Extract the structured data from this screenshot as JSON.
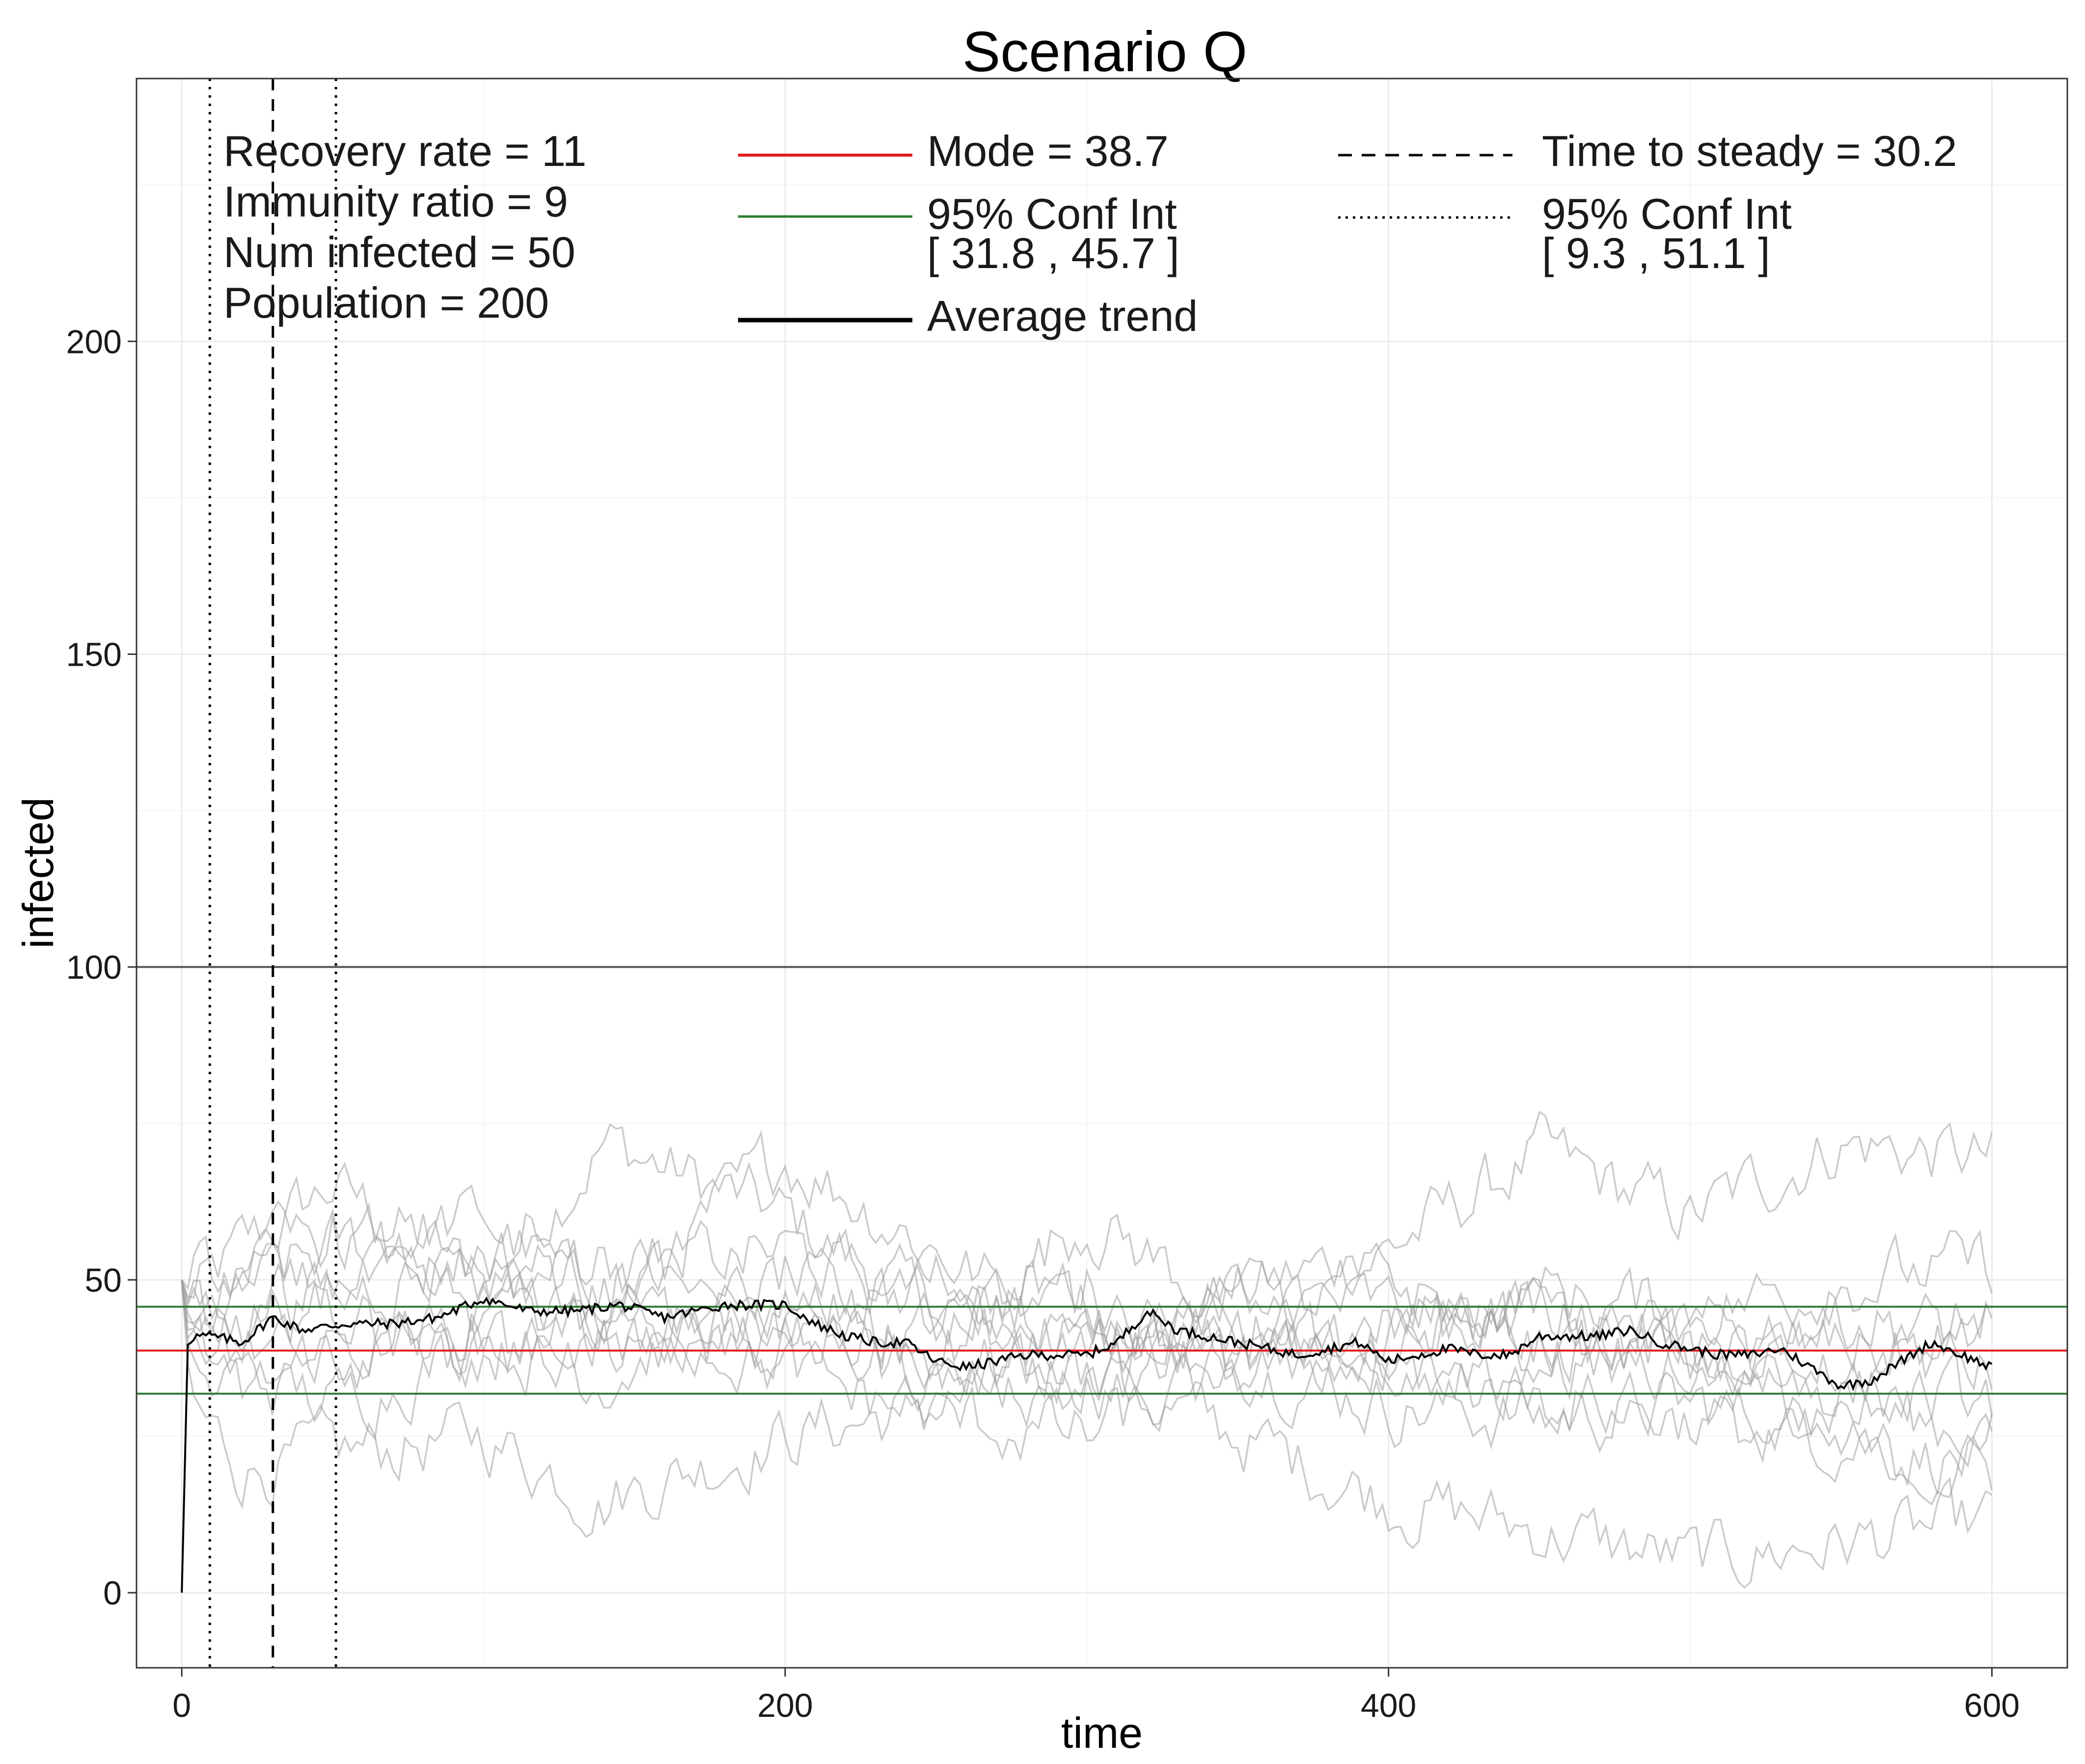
{
  "chart_data": {
    "type": "line",
    "title": "Scenario Q",
    "xlabel": "time",
    "ylabel": "infected",
    "xlim": [
      -15,
      625
    ],
    "ylim": [
      -12,
      242
    ],
    "x_ticks": [
      0,
      200,
      400,
      600
    ],
    "x_tick_labels": [
      "0",
      "200",
      "400",
      "600"
    ],
    "y_ticks": [
      0,
      50,
      100,
      150,
      200
    ],
    "y_tick_labels": [
      "0",
      "50",
      "100",
      "150",
      "200"
    ],
    "grid": true,
    "colors": {
      "mode": "#e41a1c",
      "conf_int": "#2e7d32",
      "average": "#000000",
      "runs": "#9e9e9e",
      "reference": "#555555",
      "grid": "#ebebeb"
    },
    "reference_line": {
      "y": 100
    },
    "horizontal_lines": [
      {
        "name": "Mode",
        "y": 38.7,
        "color": "#e41a1c"
      },
      {
        "name": "95% Conf Int lower",
        "y": 31.8,
        "color": "#2e7d32"
      },
      {
        "name": "95% Conf Int upper",
        "y": 45.7,
        "color": "#2e7d32"
      }
    ],
    "vertical_lines": [
      {
        "name": "Time to steady",
        "x": 30.2,
        "style": "dashed"
      },
      {
        "name": "95% Conf Int lower",
        "x": 9.3,
        "style": "dotted"
      },
      {
        "name": "95% Conf Int upper",
        "x": 51.1,
        "style": "dotted"
      }
    ],
    "average_trend": {
      "x": [
        0,
        2,
        4,
        10,
        20,
        30,
        40,
        55,
        70,
        85,
        100,
        115,
        130,
        145,
        160,
        180,
        190,
        200,
        210,
        220,
        230,
        240,
        250,
        260,
        270,
        280,
        290,
        300,
        310,
        320,
        330,
        340,
        350,
        360,
        370,
        380,
        390,
        400,
        410,
        420,
        430,
        440,
        450,
        460,
        470,
        480,
        490,
        500,
        510,
        520,
        530,
        540,
        550,
        560,
        570,
        580,
        590,
        600
      ],
      "y": [
        0,
        40,
        41,
        41,
        40,
        44,
        42,
        43,
        43,
        44,
        47,
        45,
        45,
        46,
        44,
        46,
        46,
        46,
        43,
        41,
        40,
        40,
        37,
        36,
        37,
        38,
        38,
        38,
        40,
        45,
        42,
        41,
        40,
        39,
        38,
        39,
        40,
        37,
        38,
        39,
        38,
        38,
        41,
        41,
        41,
        42,
        40,
        39,
        38,
        38,
        39,
        36,
        33,
        34,
        37,
        40,
        38,
        36
      ]
    },
    "simulation_runs": [
      {
        "name": "run-1",
        "x": [
          0,
          3,
          20,
          50,
          100,
          140,
          200,
          250,
          300,
          350,
          400,
          450,
          500,
          550,
          600
        ],
        "y": [
          50,
          46,
          55,
          65,
          50,
          72,
          60,
          45,
          40,
          48,
          55,
          70,
          60,
          72,
          69
        ]
      },
      {
        "name": "run-2",
        "x": [
          0,
          3,
          20,
          50,
          100,
          140,
          200,
          250,
          300,
          350,
          400,
          450,
          500,
          550,
          600
        ],
        "y": [
          50,
          30,
          20,
          22,
          25,
          15,
          25,
          30,
          35,
          25,
          15,
          10,
          5,
          8,
          11
        ]
      },
      {
        "name": "run-3",
        "x": [
          0,
          3,
          20,
          50,
          100,
          140,
          200,
          250,
          300,
          350,
          400,
          450,
          500,
          550,
          600
        ],
        "y": [
          50,
          40,
          48,
          55,
          60,
          45,
          70,
          55,
          40,
          38,
          30,
          28,
          30,
          25,
          20
        ]
      },
      {
        "name": "run-4",
        "x": [
          0,
          3,
          20,
          50,
          100,
          140,
          200,
          250,
          300,
          350,
          400,
          450,
          500,
          550,
          600
        ],
        "y": [
          50,
          45,
          40,
          35,
          45,
          55,
          40,
          42,
          60,
          45,
          38,
          45,
          40,
          35,
          45
        ]
      },
      {
        "name": "run-5",
        "x": [
          0,
          3,
          20,
          50,
          100,
          140,
          200,
          250,
          300,
          350,
          400,
          450,
          500,
          550,
          600
        ],
        "y": [
          50,
          38,
          35,
          30,
          40,
          35,
          50,
          38,
          35,
          48,
          45,
          40,
          35,
          30,
          25
        ]
      },
      {
        "name": "run-6",
        "x": [
          0,
          3,
          20,
          50,
          100,
          140,
          200,
          250,
          300,
          350,
          400,
          450,
          500,
          550,
          600
        ],
        "y": [
          50,
          42,
          45,
          48,
          55,
          50,
          55,
          45,
          50,
          35,
          42,
          48,
          45,
          50,
          52
        ]
      },
      {
        "name": "run-7",
        "x": [
          0,
          3,
          20,
          50,
          100,
          140,
          200,
          250,
          300,
          350,
          400,
          450,
          500,
          550,
          600
        ],
        "y": [
          50,
          35,
          30,
          40,
          38,
          42,
          40,
          35,
          32,
          40,
          38,
          35,
          40,
          45,
          40
        ]
      },
      {
        "name": "run-8",
        "x": [
          0,
          3,
          20,
          50,
          100,
          140,
          200,
          250,
          300,
          350,
          400,
          450,
          500,
          550,
          600
        ],
        "y": [
          50,
          44,
          50,
          45,
          40,
          38,
          42,
          50,
          45,
          42,
          50,
          40,
          35,
          40,
          35
        ]
      },
      {
        "name": "run-9",
        "x": [
          0,
          3,
          20,
          50,
          100,
          140,
          200,
          250,
          300,
          350,
          400,
          450,
          500,
          550,
          600
        ],
        "y": [
          50,
          36,
          42,
          50,
          45,
          48,
          35,
          28,
          25,
          35,
          40,
          45,
          38,
          33,
          30
        ]
      },
      {
        "name": "run-10",
        "x": [
          0,
          3,
          20,
          50,
          100,
          140,
          200,
          250,
          300,
          350,
          400,
          450,
          500,
          550,
          600
        ],
        "y": [
          50,
          48,
          52,
          58,
          48,
          40,
          45,
          40,
          45,
          38,
          35,
          32,
          28,
          22,
          19
        ]
      }
    ],
    "legend": {
      "placement": "top",
      "params": [
        "Recovery rate = 11",
        "Immunity ratio = 9",
        "Num infected = 50",
        "Population = 200"
      ],
      "mode_label": "Mode = 38.7",
      "ci_label": "95% Conf Int",
      "ci_values": "[ 31.8 , 45.7 ]",
      "average_label": "Average trend",
      "steady_label": "Time to steady = 30.2",
      "steady_ci_label": "95% Conf Int",
      "steady_ci_values": "[ 9.3 , 51.1 ]"
    }
  }
}
